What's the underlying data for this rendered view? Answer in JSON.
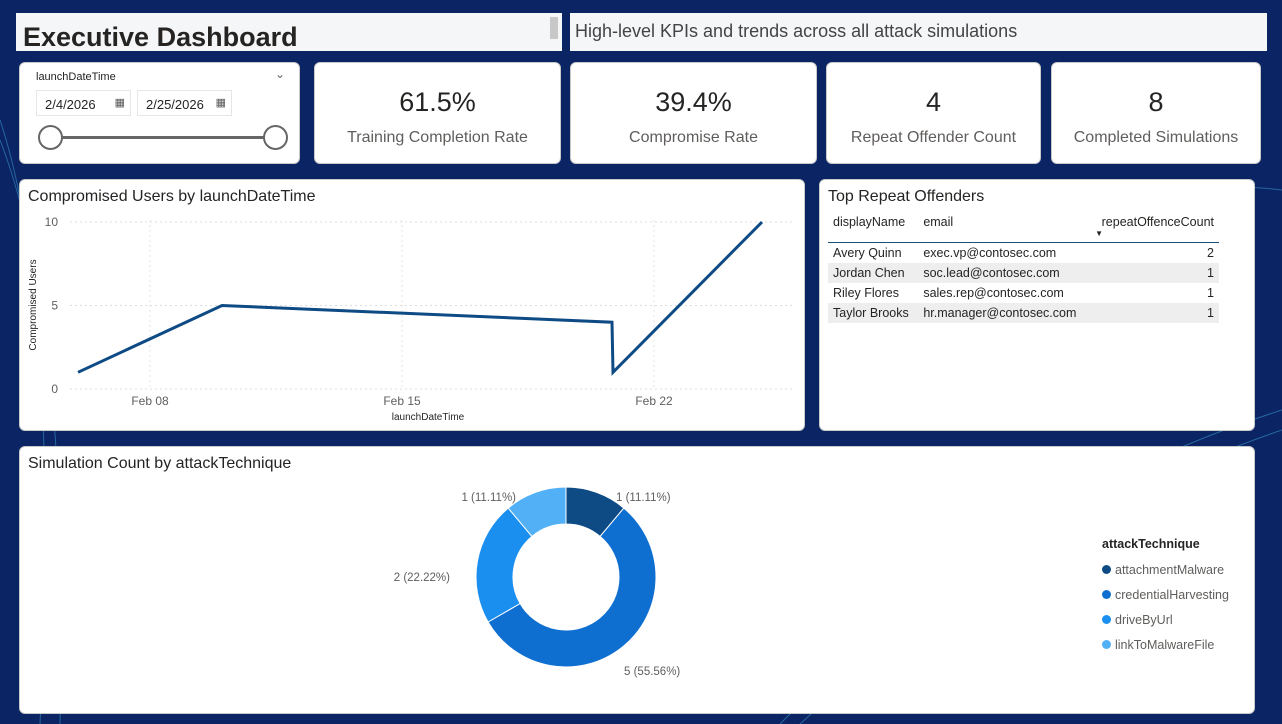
{
  "header": {
    "title": "Executive Dashboard",
    "subtitle": "High-level KPIs and trends across all attack simulations"
  },
  "slicer": {
    "label": "launchDateTime",
    "start": "2/4/2026",
    "end": "2/25/2026",
    "range_fraction": [
      0,
      1
    ]
  },
  "kpis": [
    {
      "value": "61.5%",
      "label": "Training Completion Rate"
    },
    {
      "value": "39.4%",
      "label": "Compromise Rate"
    },
    {
      "value": "4",
      "label": "Repeat Offender Count"
    },
    {
      "value": "8",
      "label": "Completed Simulations"
    }
  ],
  "line_chart": {
    "title": "Compromised Users by launchDateTime"
  },
  "offenders": {
    "title": "Top Repeat Offenders",
    "columns": [
      "displayName",
      "email",
      "repeatOffenceCount"
    ],
    "rows": [
      [
        "Avery Quinn",
        "exec.vp@contosec.com",
        "2"
      ],
      [
        "Jordan Chen",
        "soc.lead@contosec.com",
        "1"
      ],
      [
        "Riley Flores",
        "sales.rep@contosec.com",
        "1"
      ],
      [
        "Taylor Brooks",
        "hr.manager@contosec.com",
        "1"
      ]
    ]
  },
  "donut": {
    "title": "Simulation Count by attackTechnique",
    "legend_title": "attackTechnique"
  },
  "chart_data": [
    {
      "type": "line",
      "title": "Compromised Users by launchDateTime",
      "xlabel": "launchDateTime",
      "ylabel": "Compromised Users",
      "x": [
        "2026-02-06",
        "2026-02-10",
        "2026-02-21",
        "2026-02-21",
        "2026-02-25"
      ],
      "y": [
        1,
        5,
        4,
        1,
        10
      ],
      "xticks": [
        "Feb 08",
        "Feb 15",
        "Feb 22"
      ],
      "yticks": [
        "0",
        "5",
        "10"
      ],
      "ylim": [
        0,
        10
      ],
      "grid": true,
      "color": "#0e4a84"
    },
    {
      "type": "pie",
      "subtype": "donut",
      "title": "Simulation Count by attackTechnique",
      "legend_position": "right",
      "categories": [
        "attachmentMalware",
        "credentialHarvesting",
        "driveByUrl",
        "linkToMalwareFile"
      ],
      "values": [
        1,
        5,
        2,
        1
      ],
      "labels": [
        "1 (11.11%)",
        "5 (55.56%)",
        "2 (22.22%)",
        "1 (11.11%)"
      ],
      "colors": [
        "#0e4a84",
        "#0f6fd1",
        "#1a8ff0",
        "#52b0f7"
      ]
    }
  ]
}
